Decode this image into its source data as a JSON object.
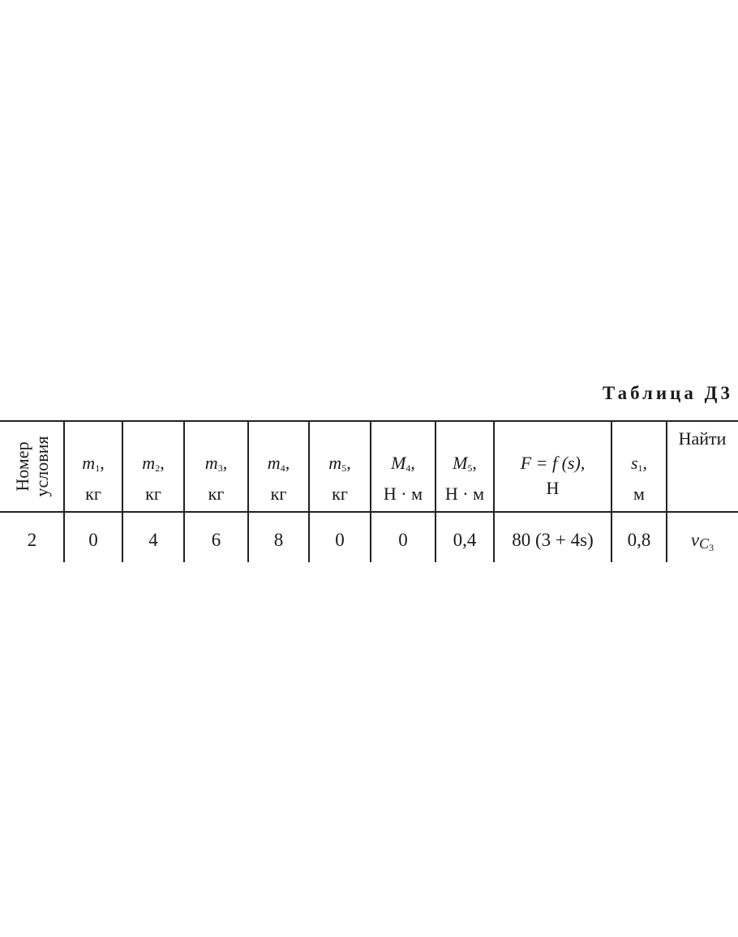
{
  "title": "Таблица Д3",
  "headers": [
    {
      "line1": "Номер",
      "line2": "условия"
    },
    {
      "sym": "m",
      "sub": "1",
      "unit": "кг"
    },
    {
      "sym": "m",
      "sub": "2",
      "unit": "кг"
    },
    {
      "sym": "m",
      "sub": "3",
      "unit": "кг"
    },
    {
      "sym": "m",
      "sub": "4",
      "unit": "кг"
    },
    {
      "sym": "m",
      "sub": "5",
      "unit": "кг"
    },
    {
      "sym": "M",
      "sub": "4",
      "unit": "Н · м"
    },
    {
      "sym": "M",
      "sub": "5",
      "unit": "Н · м"
    },
    {
      "sym": "F = f (s)",
      "sub": "",
      "unit": "Н"
    },
    {
      "sym": "s",
      "sub": "1",
      "unit": "м"
    },
    {
      "sym": "Найти",
      "sub": "",
      "unit": ""
    }
  ],
  "row": [
    "2",
    "0",
    "4",
    "6",
    "8",
    "0",
    "0",
    "0,4",
    "80 (3 + 4s)",
    "0,8"
  ],
  "find": {
    "sym": "v",
    "sub": "C",
    "subsub": "3"
  }
}
